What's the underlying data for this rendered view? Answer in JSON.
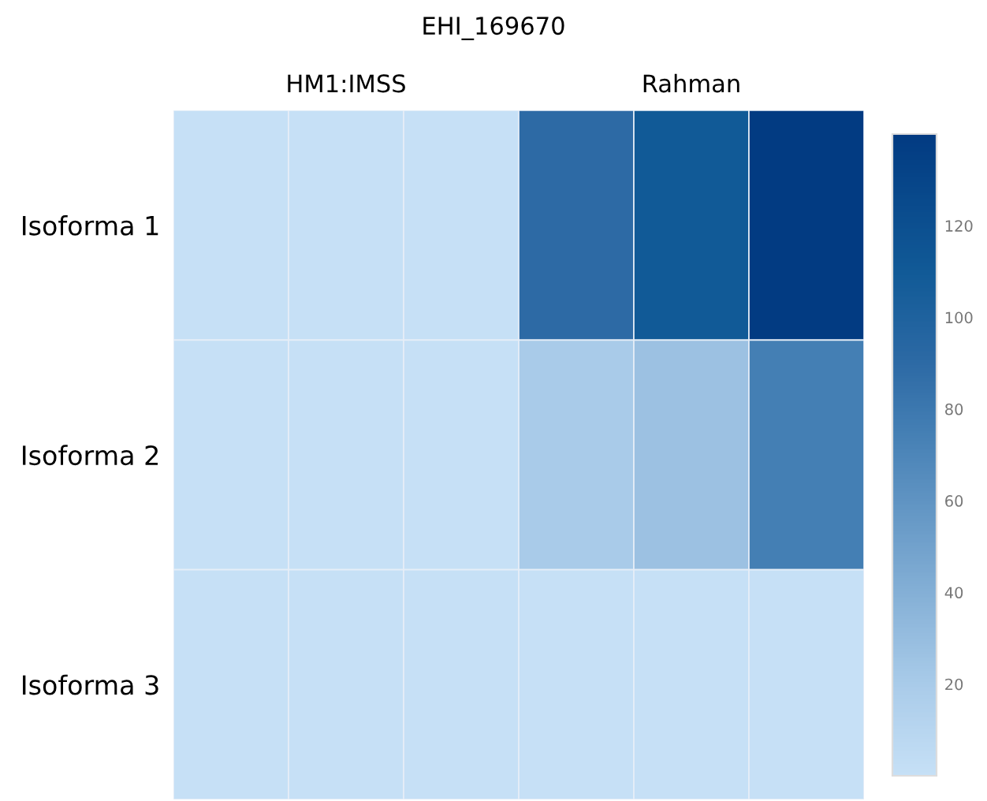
{
  "chart_data": {
    "type": "heatmap",
    "title": "EHI_169670",
    "categories": [
      null,
      "HM1:IMSS",
      null,
      null,
      "Rahman",
      null
    ],
    "y_categories": [
      "Isoforma 1",
      "Isoforma 2",
      "Isoforma 3"
    ],
    "cells": [
      [
        0,
        0,
        0,
        90,
        110,
        140
      ],
      [
        0,
        0,
        0,
        20,
        27,
        75
      ],
      [
        0,
        0,
        0,
        0,
        0,
        0
      ]
    ],
    "clim": [
      0,
      140
    ],
    "cticks": [
      20,
      40,
      60,
      80,
      100,
      120
    ]
  }
}
